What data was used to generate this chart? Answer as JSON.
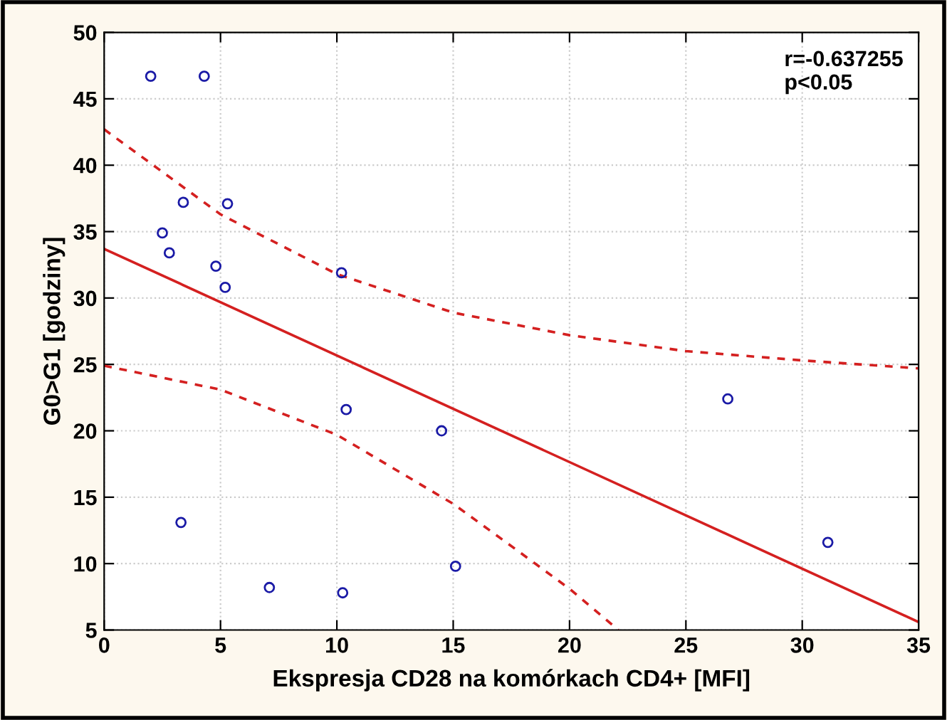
{
  "chart_data": {
    "type": "scatter",
    "xlabel": "Ekspresja CD28 na komórkach CD4+ [MFI]",
    "ylabel": "G0>G1 [godziny]",
    "annotations": [
      "r=-0.637255\np<0.05"
    ],
    "xlim": [
      0,
      35
    ],
    "xticks": [
      0,
      5,
      10,
      15,
      20,
      25,
      30,
      35
    ],
    "ylim": [
      5,
      50
    ],
    "yticks": [
      5,
      10,
      15,
      20,
      25,
      30,
      35,
      40,
      45,
      50
    ],
    "grid": true,
    "marker": "circle",
    "series": [
      {
        "color": "#1a1aa6",
        "x": [
          2.0,
          4.3,
          3.4,
          5.3,
          2.5,
          2.8,
          4.8,
          5.2,
          10.2,
          10.4,
          14.5,
          3.3,
          7.1,
          10.25,
          15.1,
          26.8,
          31.1
        ],
        "values": [
          46.7,
          46.7,
          37.2,
          37.1,
          34.9,
          33.4,
          32.4,
          30.8,
          31.9,
          21.6,
          20.0,
          13.1,
          8.2,
          7.8,
          9.8,
          22.4,
          11.6
        ]
      },
      {
        "type": "line",
        "color": "#d42020",
        "line_style": "solid",
        "marker": "none",
        "x": [
          0,
          35
        ],
        "values": [
          33.7,
          5.6
        ]
      },
      {
        "type": "line",
        "color": "#d42020",
        "line_style": "dashed",
        "marker": "none",
        "x": [
          0,
          5,
          10,
          15,
          20,
          25,
          30,
          35
        ],
        "values": [
          42.7,
          36.3,
          31.8,
          28.9,
          27.2,
          26.0,
          25.3,
          24.7
        ]
      },
      {
        "type": "line",
        "color": "#d42020",
        "line_style": "dashed",
        "marker": "none",
        "x": [
          0,
          5,
          10,
          15,
          17.2,
          20,
          22.1
        ],
        "values": [
          24.9,
          23.1,
          19.7,
          14.5,
          11.7,
          8.1,
          5.0
        ]
      }
    ]
  }
}
